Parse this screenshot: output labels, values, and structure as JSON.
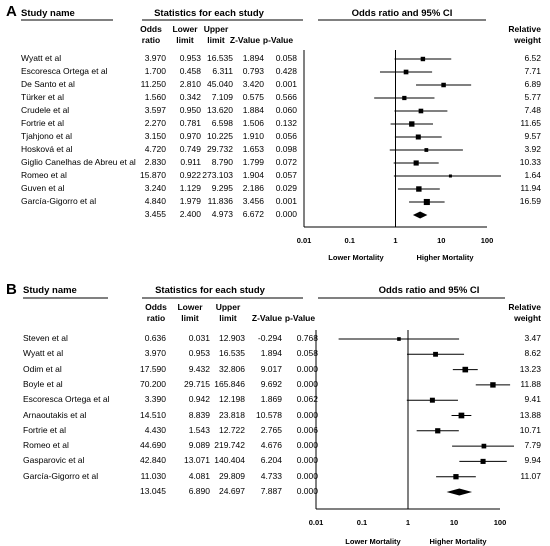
{
  "chart_data": [
    {
      "type": "forest",
      "panel_label": "A",
      "header": {
        "study_col": "Study name",
        "stats_group": "Statistics for each study",
        "plot_title": "Odds ratio and 95% CI",
        "weight_col": [
          "Relative",
          "weight"
        ],
        "columns": [
          [
            "Odds",
            "ratio"
          ],
          [
            "Lower",
            "limit"
          ],
          [
            "Upper",
            "limit"
          ],
          [
            "",
            "Z-Value"
          ],
          [
            "",
            "p-Value"
          ]
        ]
      },
      "x_scale": "log",
      "x_ticks": [
        "0.01",
        "0.1",
        "1",
        "10",
        "100"
      ],
      "xlim": [
        0.01,
        100
      ],
      "favours_left": "Lower Mortality",
      "favours_right": "Higher Mortality",
      "studies": [
        {
          "name": "Wyatt et al",
          "or": "3.970",
          "lower": "0.953",
          "upper": "16.535",
          "z": "1.894",
          "p": "0.058",
          "weight": "6.52"
        },
        {
          "name": "Escoresca Ortega et al",
          "or": "1.700",
          "lower": "0.458",
          "upper": "6.311",
          "z": "0.793",
          "p": "0.428",
          "weight": "7.71"
        },
        {
          "name": "De Santo et al",
          "or": "11.250",
          "lower": "2.810",
          "upper": "45.040",
          "z": "3.420",
          "p": "0.001",
          "weight": "6.89"
        },
        {
          "name": "Türker et al",
          "or": "1.560",
          "lower": "0.342",
          "upper": "7.109",
          "z": "0.575",
          "p": "0.566",
          "weight": "5.77"
        },
        {
          "name": "Crudele et al",
          "or": "3.597",
          "lower": "0.950",
          "upper": "13.620",
          "z": "1.884",
          "p": "0.060",
          "weight": "7.48"
        },
        {
          "name": "Fortrie et al",
          "or": "2.270",
          "lower": "0.781",
          "upper": "6.598",
          "z": "1.506",
          "p": "0.132",
          "weight": "11.65"
        },
        {
          "name": "Tjahjono et al",
          "or": "3.150",
          "lower": "0.970",
          "upper": "10.225",
          "z": "1.910",
          "p": "0.056",
          "weight": "9.57"
        },
        {
          "name": "Hosková et al",
          "or": "4.720",
          "lower": "0.749",
          "upper": "29.732",
          "z": "1.653",
          "p": "0.098",
          "weight": "3.92"
        },
        {
          "name": "Giglio Canelhas de Abreu et al",
          "or": "2.830",
          "lower": "0.911",
          "upper": "8.790",
          "z": "1.799",
          "p": "0.072",
          "weight": "10.33"
        },
        {
          "name": "Romeo et al",
          "or": "15.870",
          "lower": "0.922",
          "upper": "273.103",
          "z": "1.904",
          "p": "0.057",
          "weight": "1.64"
        },
        {
          "name": "Guven et al",
          "or": "3.240",
          "lower": "1.129",
          "upper": "9.295",
          "z": "2.186",
          "p": "0.029",
          "weight": "11.94"
        },
        {
          "name": "García-Gigorro et al",
          "or": "4.840",
          "lower": "1.979",
          "upper": "11.836",
          "z": "3.456",
          "p": "0.001",
          "weight": "16.59"
        }
      ],
      "pooled": {
        "or": "3.455",
        "lower": "2.400",
        "upper": "4.973",
        "z": "6.672",
        "p": "0.000"
      }
    },
    {
      "type": "forest",
      "panel_label": "B",
      "header": {
        "study_col": "Study name",
        "stats_group": "Statistics for each study",
        "plot_title": "Odds ratio and 95% CI",
        "weight_col": [
          "Relative",
          "weight"
        ],
        "columns": [
          [
            "Odds",
            "ratio"
          ],
          [
            "Lower",
            "limit"
          ],
          [
            "Upper",
            "limit"
          ],
          [
            "",
            "Z-Value"
          ],
          [
            "",
            "p-Value"
          ]
        ]
      },
      "x_scale": "log",
      "x_ticks": [
        "0.01",
        "0.1",
        "1",
        "10",
        "100"
      ],
      "xlim": [
        0.01,
        100
      ],
      "favours_left": "Lower Mortality",
      "favours_right": "Higher Mortality",
      "studies": [
        {
          "name": "Steven et al",
          "or": "0.636",
          "lower": "0.031",
          "upper": "12.903",
          "z": "-0.294",
          "p": "0.768",
          "weight": "3.47"
        },
        {
          "name": "Wyatt et al",
          "or": "3.970",
          "lower": "0.953",
          "upper": "16.535",
          "z": "1.894",
          "p": "0.058",
          "weight": "8.62"
        },
        {
          "name": "Odim et al",
          "or": "17.590",
          "lower": "9.432",
          "upper": "32.806",
          "z": "9.017",
          "p": "0.000",
          "weight": "13.23"
        },
        {
          "name": "Boyle et al",
          "or": "70.200",
          "lower": "29.715",
          "upper": "165.846",
          "z": "9.692",
          "p": "0.000",
          "weight": "11.88"
        },
        {
          "name": "Escoresca Ortega et al",
          "or": "3.390",
          "lower": "0.942",
          "upper": "12.198",
          "z": "1.869",
          "p": "0.062",
          "weight": "9.41"
        },
        {
          "name": "Arnaoutakis et al",
          "or": "14.510",
          "lower": "8.839",
          "upper": "23.818",
          "z": "10.578",
          "p": "0.000",
          "weight": "13.88"
        },
        {
          "name": "Fortrie et al",
          "or": "4.430",
          "lower": "1.543",
          "upper": "12.722",
          "z": "2.765",
          "p": "0.006",
          "weight": "10.71"
        },
        {
          "name": "Romeo et al",
          "or": "44.690",
          "lower": "9.089",
          "upper": "219.742",
          "z": "4.676",
          "p": "0.000",
          "weight": "7.79"
        },
        {
          "name": "Gasparovic et al",
          "or": "42.840",
          "lower": "13.071",
          "upper": "140.404",
          "z": "6.204",
          "p": "0.000",
          "weight": "9.94"
        },
        {
          "name": "García-Gigorro et al",
          "or": "11.030",
          "lower": "4.081",
          "upper": "29.809",
          "z": "4.733",
          "p": "0.000",
          "weight": "11.07"
        }
      ],
      "pooled": {
        "or": "13.045",
        "lower": "6.890",
        "upper": "24.697",
        "z": "7.887",
        "p": "0.000"
      }
    }
  ]
}
